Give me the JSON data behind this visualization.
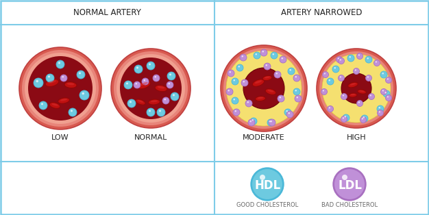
{
  "title_left": "NORMAL ARTERY",
  "title_right": "ARTERY NARROWED",
  "labels": [
    "LOW",
    "NORMAL",
    "MODERATE",
    "HIGH"
  ],
  "hdl_label": "HDL",
  "ldl_label": "LDL",
  "hdl_sub": "GOOD CHOLESTEROL",
  "ldl_sub": "BAD CHOLESTEROL",
  "bg_color": "#ffffff",
  "border_color": "#7ecce8",
  "outer_wall_color": "#e8736a",
  "outer_wall_edge": "#d05848",
  "inner_wall_color": "#f0a898",
  "blood_color": "#8b0a14",
  "plaque_color": "#f5e070",
  "plaque_edge": "#e0c840",
  "hdl_color": "#6dcae0",
  "hdl_dark": "#4ab8d8",
  "ldl_color": "#c090d8",
  "ldl_dark": "#a870c0",
  "rbc_fill": "#c01010",
  "rbc_edge": "#900808",
  "title_fontsize": 8.5,
  "label_fontsize": 8,
  "legend_fontsize": 12,
  "legend_sub_fontsize": 6
}
